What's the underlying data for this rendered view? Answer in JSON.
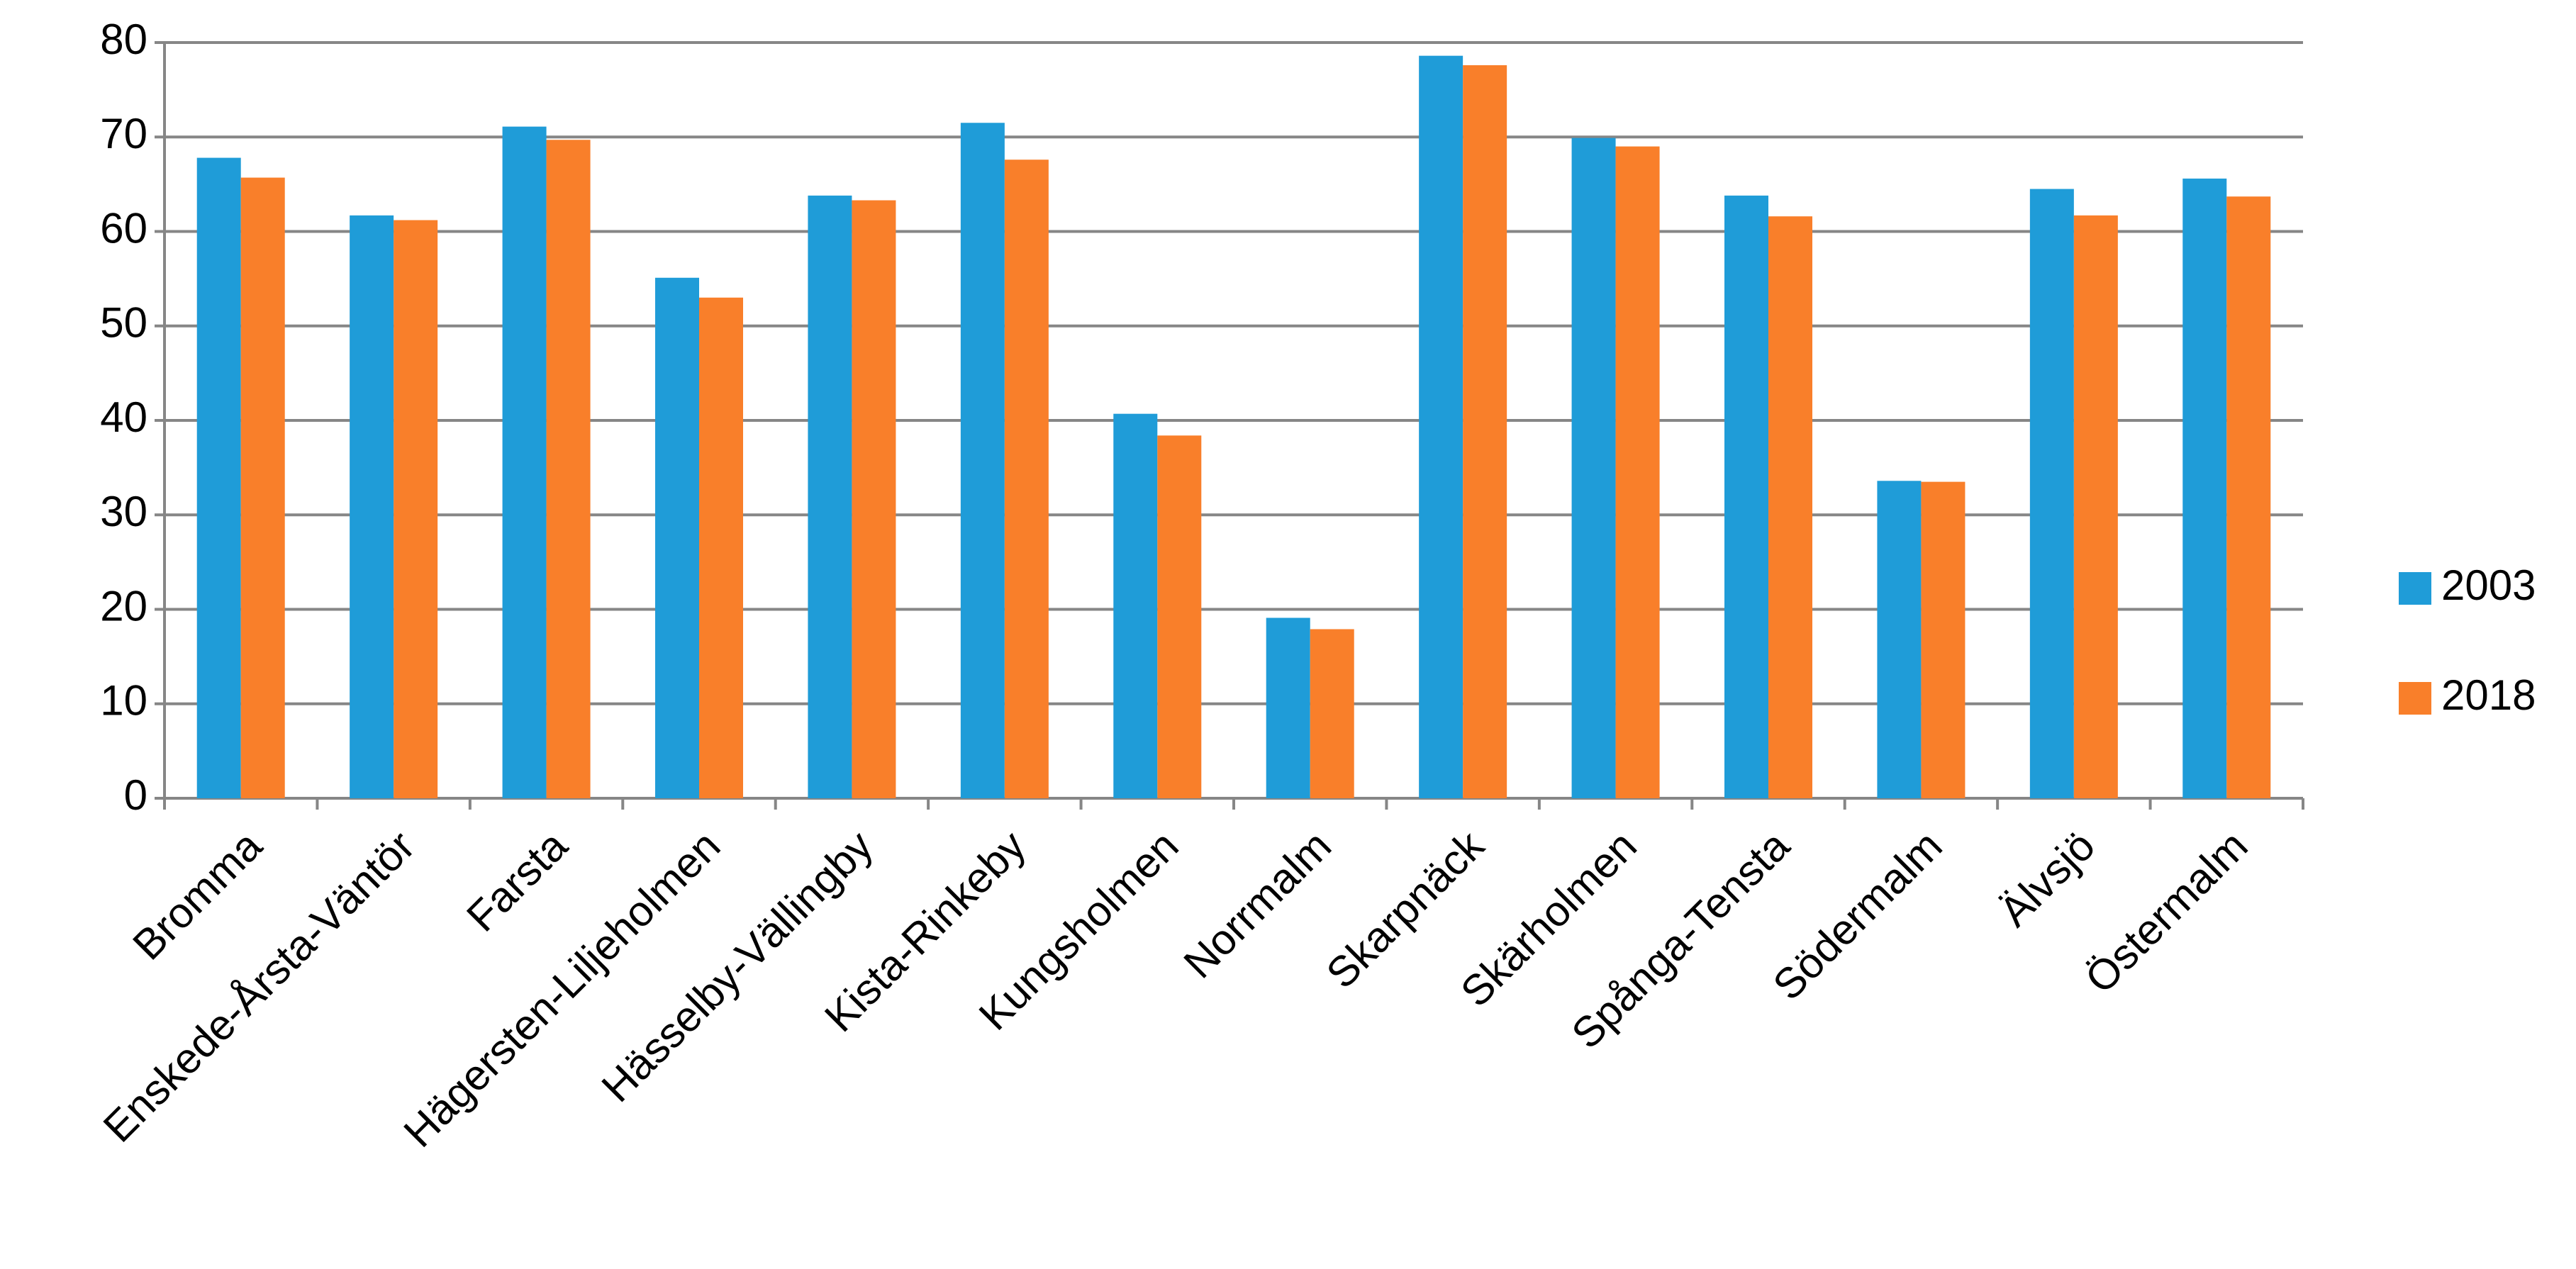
{
  "chart_data": {
    "type": "bar",
    "categories": [
      "Bromma",
      "Enskede-Årsta-Väntör",
      "Farsta",
      "Hägersten-Liljeholmen",
      "Hässelby-Vällingby",
      "Kista-Rinkeby",
      "Kungsholmen",
      "Norrmalm",
      "Skarpnäck",
      "Skärholmen",
      "Spånga-Tensta",
      "Södermalm",
      "Älvsjö",
      "Östermalm"
    ],
    "series": [
      {
        "name": "2003",
        "color": "#1f9cd8",
        "values": [
          67.8,
          61.7,
          71.1,
          55.1,
          63.8,
          71.5,
          40.7,
          19.1,
          78.6,
          69.9,
          63.8,
          33.6,
          64.5,
          65.6
        ]
      },
      {
        "name": "2018",
        "color": "#f97f2a",
        "values": [
          65.7,
          61.2,
          69.7,
          53.0,
          63.3,
          67.6,
          38.4,
          17.9,
          77.6,
          69.0,
          61.6,
          33.5,
          61.7,
          63.7
        ]
      }
    ],
    "ylim": [
      0,
      80
    ],
    "yticks": [
      0,
      10,
      20,
      30,
      40,
      50,
      60,
      70,
      80
    ],
    "grid": true,
    "legend": "right"
  }
}
